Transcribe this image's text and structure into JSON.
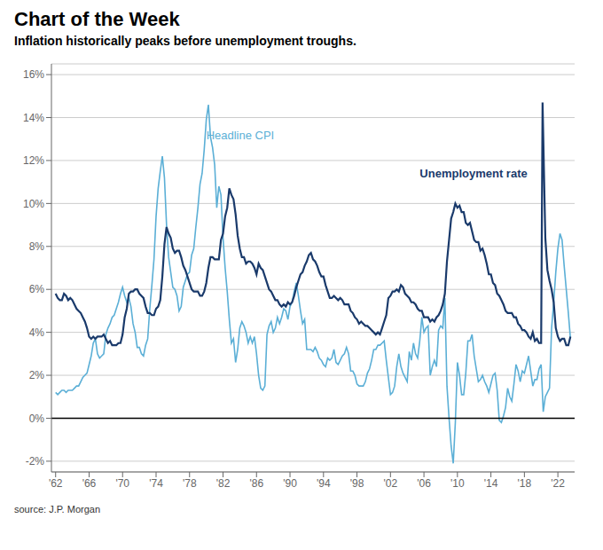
{
  "chart_data": {
    "type": "line",
    "title": "Chart of the Week",
    "subtitle": "Inflation historically peaks before unemployment troughs.",
    "source": "source: J.P. Morgan",
    "xlim": [
      1961.5,
      2024.0
    ],
    "xticks": [
      {
        "value": 1962,
        "label": "'62"
      },
      {
        "value": 1966,
        "label": "'66"
      },
      {
        "value": 1970,
        "label": "'70"
      },
      {
        "value": 1974,
        "label": "'74"
      },
      {
        "value": 1978,
        "label": "'78"
      },
      {
        "value": 1982,
        "label": "'82"
      },
      {
        "value": 1986,
        "label": "'86"
      },
      {
        "value": 1990,
        "label": "'90"
      },
      {
        "value": 1994,
        "label": "'94"
      },
      {
        "value": 1998,
        "label": "'98"
      },
      {
        "value": 2002,
        "label": "'02"
      },
      {
        "value": 2006,
        "label": "'06"
      },
      {
        "value": 2010,
        "label": "'10"
      },
      {
        "value": 2014,
        "label": "'14"
      },
      {
        "value": 2018,
        "label": "'18"
      },
      {
        "value": 2022,
        "label": "'22"
      }
    ],
    "ylim": [
      -2.5,
      16.5
    ],
    "yticks": [
      {
        "value": -2,
        "label": "-2%"
      },
      {
        "value": 0,
        "label": "0%"
      },
      {
        "value": 2,
        "label": "2%"
      },
      {
        "value": 4,
        "label": "4%"
      },
      {
        "value": 6,
        "label": "6%"
      },
      {
        "value": 8,
        "label": "8%"
      },
      {
        "value": 10,
        "label": "10%"
      },
      {
        "value": 12,
        "label": "12%"
      },
      {
        "value": 14,
        "label": "14%"
      },
      {
        "value": 16,
        "label": "16%"
      }
    ],
    "grid": true,
    "hlines": [
      0
    ],
    "annotations": [
      {
        "text": "Headline CPI",
        "x": 1980.0,
        "y": 13.0,
        "color": "#5bafd6"
      },
      {
        "text": "Unemployment rate",
        "x": 2005.5,
        "y": 11.2,
        "color": "#1a3a6b"
      }
    ],
    "series": [
      {
        "color": "#5bafd6",
        "x": [
          1962.0,
          1962.25,
          1962.5,
          1962.75,
          1963.0,
          1963.25,
          1963.5,
          1963.75,
          1964.0,
          1964.25,
          1964.5,
          1964.75,
          1965.0,
          1965.25,
          1965.5,
          1965.75,
          1966.0,
          1966.25,
          1966.5,
          1966.75,
          1967.0,
          1967.25,
          1967.5,
          1967.75,
          1968.0,
          1968.25,
          1968.5,
          1968.75,
          1969.0,
          1969.25,
          1969.5,
          1969.75,
          1970.0,
          1970.25,
          1970.5,
          1970.75,
          1971.0,
          1971.25,
          1971.5,
          1971.75,
          1972.0,
          1972.25,
          1972.5,
          1972.75,
          1973.0,
          1973.25,
          1973.5,
          1973.75,
          1974.0,
          1974.25,
          1974.5,
          1974.75,
          1975.0,
          1975.25,
          1975.5,
          1975.75,
          1976.0,
          1976.25,
          1976.5,
          1976.75,
          1977.0,
          1977.25,
          1977.5,
          1977.75,
          1978.0,
          1978.25,
          1978.5,
          1978.75,
          1979.0,
          1979.25,
          1979.5,
          1979.75,
          1980.0,
          1980.25,
          1980.5,
          1980.75,
          1981.0,
          1981.25,
          1981.5,
          1981.75,
          1982.0,
          1982.25,
          1982.5,
          1982.75,
          1983.0,
          1983.25,
          1983.5,
          1983.75,
          1984.0,
          1984.25,
          1984.5,
          1984.75,
          1985.0,
          1985.25,
          1985.5,
          1985.75,
          1986.0,
          1986.25,
          1986.5,
          1986.75,
          1987.0,
          1987.25,
          1987.5,
          1987.75,
          1988.0,
          1988.25,
          1988.5,
          1988.75,
          1989.0,
          1989.25,
          1989.5,
          1989.75,
          1990.0,
          1990.25,
          1990.5,
          1990.75,
          1991.0,
          1991.25,
          1991.5,
          1991.75,
          1992.0,
          1992.25,
          1992.5,
          1992.75,
          1993.0,
          1993.25,
          1993.5,
          1993.75,
          1994.0,
          1994.25,
          1994.5,
          1994.75,
          1995.0,
          1995.25,
          1995.5,
          1995.75,
          1996.0,
          1996.25,
          1996.5,
          1996.75,
          1997.0,
          1997.25,
          1997.5,
          1997.75,
          1998.0,
          1998.25,
          1998.5,
          1998.75,
          1999.0,
          1999.25,
          1999.5,
          1999.75,
          2000.0,
          2000.25,
          2000.5,
          2000.75,
          2001.0,
          2001.25,
          2001.5,
          2001.75,
          2002.0,
          2002.25,
          2002.5,
          2002.75,
          2003.0,
          2003.25,
          2003.5,
          2003.75,
          2004.0,
          2004.25,
          2004.5,
          2004.75,
          2005.0,
          2005.25,
          2005.5,
          2005.75,
          2006.0,
          2006.25,
          2006.5,
          2006.75,
          2007.0,
          2007.25,
          2007.5,
          2007.75,
          2008.0,
          2008.25,
          2008.5,
          2008.75,
          2009.0,
          2009.25,
          2009.5,
          2009.75,
          2010.0,
          2010.25,
          2010.5,
          2010.75,
          2011.0,
          2011.25,
          2011.5,
          2011.75,
          2012.0,
          2012.25,
          2012.5,
          2012.75,
          2013.0,
          2013.25,
          2013.5,
          2013.75,
          2014.0,
          2014.25,
          2014.5,
          2014.75,
          2015.0,
          2015.25,
          2015.5,
          2015.75,
          2016.0,
          2016.25,
          2016.5,
          2016.75,
          2017.0,
          2017.25,
          2017.5,
          2017.75,
          2018.0,
          2018.25,
          2018.5,
          2018.75,
          2019.0,
          2019.25,
          2019.5,
          2019.75,
          2020.0,
          2020.25,
          2020.5,
          2020.75,
          2021.0,
          2021.25,
          2021.5,
          2021.75,
          2022.0,
          2022.25,
          2022.5,
          2022.75,
          2023.0,
          2023.25,
          2023.5
        ],
        "values": [
          1.2,
          1.1,
          1.2,
          1.3,
          1.3,
          1.2,
          1.3,
          1.3,
          1.3,
          1.4,
          1.5,
          1.5,
          1.7,
          1.9,
          2.0,
          2.1,
          2.5,
          2.9,
          3.5,
          3.7,
          3.0,
          2.8,
          2.9,
          3.0,
          3.9,
          4.2,
          4.4,
          4.7,
          4.8,
          5.1,
          5.4,
          5.8,
          6.1,
          5.7,
          5.4,
          5.6,
          5.2,
          4.4,
          4.0,
          3.3,
          3.3,
          3.0,
          2.9,
          3.4,
          3.7,
          5.1,
          6.2,
          7.4,
          9.4,
          10.7,
          11.5,
          12.2,
          11.2,
          9.0,
          7.5,
          6.8,
          6.1,
          6.0,
          5.7,
          5.0,
          5.2,
          6.1,
          6.4,
          6.7,
          6.8,
          7.6,
          7.9,
          8.9,
          9.8,
          10.9,
          11.4,
          12.5,
          13.9,
          14.6,
          13.1,
          12.6,
          11.8,
          9.8,
          10.8,
          10.4,
          8.4,
          7.0,
          5.9,
          4.6,
          3.5,
          3.7,
          2.6,
          3.2,
          4.2,
          4.5,
          4.3,
          4.0,
          3.5,
          3.8,
          3.5,
          3.8,
          3.0,
          2.0,
          1.4,
          1.3,
          1.5,
          3.9,
          4.3,
          4.5,
          4.0,
          4.2,
          4.7,
          4.4,
          4.7,
          5.1,
          5.0,
          4.6,
          5.2,
          5.4,
          5.9,
          6.3,
          5.7,
          5.0,
          4.4,
          4.6,
          3.2,
          3.2,
          3.2,
          3.1,
          3.3,
          3.1,
          2.8,
          2.7,
          2.5,
          2.4,
          2.8,
          2.7,
          2.8,
          3.2,
          2.6,
          2.5,
          2.7,
          2.9,
          3.0,
          3.3,
          3.0,
          2.2,
          2.2,
          2.0,
          1.6,
          1.5,
          1.5,
          1.5,
          1.7,
          2.1,
          2.3,
          2.7,
          3.2,
          3.2,
          3.4,
          3.4,
          3.5,
          3.6,
          2.7,
          1.9,
          1.1,
          1.2,
          1.5,
          2.4,
          3.0,
          2.4,
          2.1,
          1.9,
          1.7,
          3.1,
          2.7,
          3.5,
          3.0,
          2.8,
          3.6,
          4.7,
          4.0,
          4.2,
          4.3,
          2.0,
          2.4,
          2.7,
          2.4,
          4.1,
          4.3,
          4.2,
          5.6,
          1.5,
          0.0,
          -1.3,
          -2.1,
          -0.2,
          2.6,
          2.0,
          1.1,
          1.1,
          2.1,
          3.6,
          3.6,
          3.9,
          2.9,
          2.3,
          1.7,
          1.8,
          2.0,
          1.7,
          1.5,
          1.2,
          1.6,
          2.0,
          2.1,
          1.3,
          -0.1,
          -0.2,
          0.1,
          0.5,
          1.4,
          1.0,
          0.8,
          1.6,
          2.5,
          2.2,
          1.7,
          2.2,
          2.1,
          2.5,
          2.9,
          2.2,
          1.5,
          1.8,
          1.8,
          2.3,
          2.5,
          0.3,
          1.0,
          1.2,
          1.4,
          4.2,
          5.4,
          6.8,
          7.9,
          8.6,
          8.3,
          7.1,
          6.0,
          4.9,
          3.7
        ]
      },
      {
        "color": "#1a3a6b",
        "x": [
          1962.0,
          1962.25,
          1962.5,
          1962.75,
          1963.0,
          1963.25,
          1963.5,
          1963.75,
          1964.0,
          1964.25,
          1964.5,
          1964.75,
          1965.0,
          1965.25,
          1965.5,
          1965.75,
          1966.0,
          1966.25,
          1966.5,
          1966.75,
          1967.0,
          1967.25,
          1967.5,
          1967.75,
          1968.0,
          1968.25,
          1968.5,
          1968.75,
          1969.0,
          1969.25,
          1969.5,
          1969.75,
          1970.0,
          1970.25,
          1970.5,
          1970.75,
          1971.0,
          1971.25,
          1971.5,
          1971.75,
          1972.0,
          1972.25,
          1972.5,
          1972.75,
          1973.0,
          1973.25,
          1973.5,
          1973.75,
          1974.0,
          1974.25,
          1974.5,
          1974.75,
          1975.0,
          1975.25,
          1975.5,
          1975.75,
          1976.0,
          1976.25,
          1976.5,
          1976.75,
          1977.0,
          1977.25,
          1977.5,
          1977.75,
          1978.0,
          1978.25,
          1978.5,
          1978.75,
          1979.0,
          1979.25,
          1979.5,
          1979.75,
          1980.0,
          1980.25,
          1980.5,
          1980.75,
          1981.0,
          1981.25,
          1981.5,
          1981.75,
          1982.0,
          1982.25,
          1982.5,
          1982.75,
          1983.0,
          1983.25,
          1983.5,
          1983.75,
          1984.0,
          1984.25,
          1984.5,
          1984.75,
          1985.0,
          1985.25,
          1985.5,
          1985.75,
          1986.0,
          1986.25,
          1986.5,
          1986.75,
          1987.0,
          1987.25,
          1987.5,
          1987.75,
          1988.0,
          1988.25,
          1988.5,
          1988.75,
          1989.0,
          1989.25,
          1989.5,
          1989.75,
          1990.0,
          1990.25,
          1990.5,
          1990.75,
          1991.0,
          1991.25,
          1991.5,
          1991.75,
          1992.0,
          1992.25,
          1992.5,
          1992.75,
          1993.0,
          1993.25,
          1993.5,
          1993.75,
          1994.0,
          1994.25,
          1994.5,
          1994.75,
          1995.0,
          1995.25,
          1995.5,
          1995.75,
          1996.0,
          1996.25,
          1996.5,
          1996.75,
          1997.0,
          1997.25,
          1997.5,
          1997.75,
          1998.0,
          1998.25,
          1998.5,
          1998.75,
          1999.0,
          1999.25,
          1999.5,
          1999.75,
          2000.0,
          2000.25,
          2000.5,
          2000.75,
          2001.0,
          2001.25,
          2001.5,
          2001.75,
          2002.0,
          2002.25,
          2002.5,
          2002.75,
          2003.0,
          2003.25,
          2003.5,
          2003.75,
          2004.0,
          2004.25,
          2004.5,
          2004.75,
          2005.0,
          2005.25,
          2005.5,
          2005.75,
          2006.0,
          2006.25,
          2006.5,
          2006.75,
          2007.0,
          2007.25,
          2007.5,
          2007.75,
          2008.0,
          2008.25,
          2008.5,
          2008.75,
          2009.0,
          2009.25,
          2009.5,
          2009.75,
          2010.0,
          2010.25,
          2010.5,
          2010.75,
          2011.0,
          2011.25,
          2011.5,
          2011.75,
          2012.0,
          2012.25,
          2012.5,
          2012.75,
          2013.0,
          2013.25,
          2013.5,
          2013.75,
          2014.0,
          2014.25,
          2014.5,
          2014.75,
          2015.0,
          2015.25,
          2015.5,
          2015.75,
          2016.0,
          2016.25,
          2016.5,
          2016.75,
          2017.0,
          2017.25,
          2017.5,
          2017.75,
          2018.0,
          2018.25,
          2018.5,
          2018.75,
          2019.0,
          2019.25,
          2019.5,
          2019.75,
          2020.0,
          2020.17,
          2020.5,
          2020.75,
          2021.0,
          2021.25,
          2021.5,
          2021.75,
          2022.0,
          2022.25,
          2022.5,
          2022.75,
          2023.0,
          2023.25,
          2023.5
        ],
        "values": [
          5.8,
          5.6,
          5.5,
          5.5,
          5.8,
          5.7,
          5.5,
          5.6,
          5.5,
          5.3,
          5.1,
          5.0,
          4.9,
          4.7,
          4.5,
          4.2,
          3.8,
          3.7,
          3.8,
          3.7,
          3.8,
          3.8,
          3.8,
          3.9,
          3.7,
          3.5,
          3.6,
          3.4,
          3.4,
          3.4,
          3.5,
          3.5,
          3.9,
          4.7,
          5.1,
          5.8,
          5.9,
          5.9,
          6.0,
          6.0,
          5.8,
          5.7,
          5.6,
          5.2,
          4.9,
          4.9,
          4.8,
          4.8,
          5.1,
          5.2,
          5.5,
          6.6,
          8.1,
          8.9,
          8.6,
          8.4,
          7.9,
          7.7,
          7.8,
          7.8,
          7.5,
          7.1,
          6.9,
          6.6,
          6.3,
          6.0,
          5.9,
          5.9,
          5.9,
          5.7,
          5.7,
          5.9,
          6.3,
          7.0,
          7.5,
          7.5,
          7.4,
          7.4,
          7.4,
          8.3,
          8.6,
          9.4,
          9.8,
          10.7,
          10.4,
          10.2,
          9.5,
          8.5,
          7.9,
          7.5,
          7.5,
          7.2,
          7.3,
          7.3,
          7.2,
          7.0,
          6.7,
          7.2,
          7.0,
          6.9,
          6.6,
          6.3,
          6.0,
          5.9,
          5.7,
          5.5,
          5.5,
          5.3,
          5.2,
          5.3,
          5.2,
          5.4,
          5.3,
          5.4,
          5.7,
          6.1,
          6.4,
          6.7,
          6.8,
          7.1,
          7.3,
          7.6,
          7.7,
          7.4,
          7.3,
          7.1,
          6.8,
          6.6,
          6.6,
          6.2,
          5.9,
          5.6,
          5.6,
          5.7,
          5.6,
          5.5,
          5.6,
          5.5,
          5.3,
          5.3,
          5.3,
          5.0,
          4.9,
          4.7,
          4.6,
          4.4,
          4.5,
          4.4,
          4.3,
          4.3,
          4.2,
          4.1,
          4.0,
          3.9,
          4.0,
          3.9,
          4.2,
          4.5,
          4.8,
          5.6,
          5.7,
          5.9,
          5.9,
          6.0,
          5.9,
          6.2,
          6.1,
          5.8,
          5.7,
          5.6,
          5.4,
          5.4,
          5.3,
          5.1,
          5.0,
          5.0,
          4.7,
          4.7,
          4.7,
          4.5,
          4.6,
          4.5,
          4.7,
          4.8,
          5.0,
          5.3,
          5.8,
          7.3,
          8.3,
          9.3,
          9.6,
          10.0,
          9.8,
          9.9,
          9.6,
          9.6,
          9.1,
          9.0,
          9.1,
          8.7,
          8.3,
          8.2,
          8.2,
          7.8,
          7.9,
          7.6,
          7.2,
          6.7,
          6.7,
          6.3,
          6.2,
          5.8,
          5.7,
          5.5,
          5.3,
          5.0,
          4.9,
          4.9,
          4.9,
          4.7,
          4.7,
          4.4,
          4.3,
          4.1,
          4.1,
          4.0,
          3.8,
          3.7,
          4.0,
          3.6,
          3.7,
          3.5,
          3.5,
          14.7,
          8.4,
          6.9,
          6.4,
          6.0,
          5.4,
          4.2,
          3.8,
          3.6,
          3.7,
          3.7,
          3.4,
          3.4,
          3.8
        ]
      }
    ]
  }
}
